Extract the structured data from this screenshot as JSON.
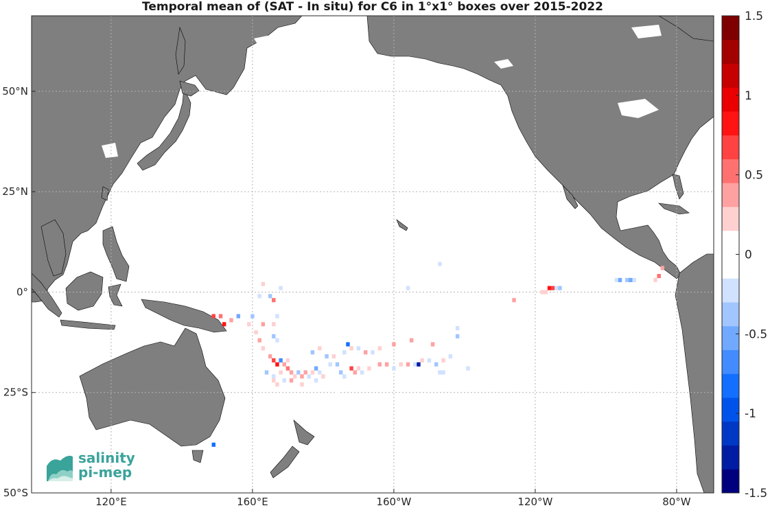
{
  "title": "Temporal mean of (SAT - In situ) for C6 in 1°x1° boxes over 2015-2022",
  "map": {
    "lon_ticks": [
      {
        "lon": 120,
        "label": "120°E"
      },
      {
        "lon": 160,
        "label": "160°E"
      },
      {
        "lon": 200,
        "label": "160°W"
      },
      {
        "lon": 240,
        "label": "120°W"
      },
      {
        "lon": 280,
        "label": "80°W"
      }
    ],
    "lat_ticks": [
      {
        "lat": 50,
        "label": "50°N"
      },
      {
        "lat": 25,
        "label": "25°N"
      },
      {
        "lat": 0,
        "label": "0°"
      },
      {
        "lat": -25,
        "label": "25°S"
      },
      {
        "lat": -50,
        "label": "50°S"
      }
    ],
    "land_color": "#7f7f7f",
    "grid": true
  },
  "colorbar": {
    "min": -1.5,
    "max": 1.5,
    "labels": [
      {
        "value": 1.5,
        "label": "1.5"
      },
      {
        "value": 1,
        "label": "1"
      },
      {
        "value": 0.5,
        "label": "0.5"
      },
      {
        "value": 0,
        "label": "0"
      },
      {
        "value": -0.5,
        "label": "-0.5"
      },
      {
        "value": -1,
        "label": "-1"
      },
      {
        "value": -1.5,
        "label": "-1.5"
      }
    ],
    "neg_color": "#00007f",
    "pos_color": "#7f0000"
  },
  "cells": [
    {
      "lon": 163,
      "lat": 2,
      "v": 0.2
    },
    {
      "lon": 166,
      "lat": 1,
      "v": -0.15
    },
    {
      "lon": 168,
      "lat": 1,
      "v": -0.2
    },
    {
      "lon": 165,
      "lat": -1,
      "v": -0.4
    },
    {
      "lon": 166,
      "lat": -2,
      "v": 0.5
    },
    {
      "lon": 162,
      "lat": -1,
      "v": -0.25
    },
    {
      "lon": 162,
      "lat": -5,
      "v": 0.15
    },
    {
      "lon": 160,
      "lat": -6,
      "v": -0.3
    },
    {
      "lon": 167,
      "lat": -6,
      "v": -0.2
    },
    {
      "lon": 149,
      "lat": -6,
      "v": 0.7
    },
    {
      "lon": 151,
      "lat": -6,
      "v": 0.5
    },
    {
      "lon": 152,
      "lat": -8,
      "v": 0.9
    },
    {
      "lon": 154,
      "lat": -7,
      "v": 0.3
    },
    {
      "lon": 156,
      "lat": -6,
      "v": -0.5
    },
    {
      "lon": 159,
      "lat": -8,
      "v": 0.2
    },
    {
      "lon": 163,
      "lat": -8,
      "v": 0.3
    },
    {
      "lon": 166,
      "lat": -8,
      "v": 0.2
    },
    {
      "lon": 166,
      "lat": -11,
      "v": -0.3
    },
    {
      "lon": 167,
      "lat": -12,
      "v": -0.2
    },
    {
      "lon": 161,
      "lat": -10,
      "v": 0.2
    },
    {
      "lon": 162,
      "lat": -12,
      "v": 0.3
    },
    {
      "lon": 163,
      "lat": -14,
      "v": 0.2
    },
    {
      "lon": 164,
      "lat": -15,
      "v": 0.15
    },
    {
      "lon": 165,
      "lat": -16,
      "v": 0.4
    },
    {
      "lon": 166,
      "lat": -17,
      "v": 0.6
    },
    {
      "lon": 167,
      "lat": -18,
      "v": 0.8
    },
    {
      "lon": 168,
      "lat": -17,
      "v": -0.7
    },
    {
      "lon": 169,
      "lat": -18,
      "v": 0.3
    },
    {
      "lon": 170,
      "lat": -17,
      "v": 0.2
    },
    {
      "lon": 168,
      "lat": -20,
      "v": 0.2
    },
    {
      "lon": 170,
      "lat": -19,
      "v": 0.5
    },
    {
      "lon": 171,
      "lat": -20,
      "v": 0.3
    },
    {
      "lon": 172,
      "lat": -21,
      "v": 0.2
    },
    {
      "lon": 173,
      "lat": -20,
      "v": -0.3
    },
    {
      "lon": 174,
      "lat": -21,
      "v": 0.4
    },
    {
      "lon": 175,
      "lat": -20,
      "v": 0.3
    },
    {
      "lon": 176,
      "lat": -21,
      "v": -0.2
    },
    {
      "lon": 177,
      "lat": -20,
      "v": 0.2
    },
    {
      "lon": 178,
      "lat": -19,
      "v": -0.5
    },
    {
      "lon": 179,
      "lat": -20,
      "v": -0.2
    },
    {
      "lon": 180,
      "lat": -21,
      "v": 0.2
    },
    {
      "lon": 164,
      "lat": -20,
      "v": -0.3
    },
    {
      "lon": 166,
      "lat": -21,
      "v": -0.2
    },
    {
      "lon": 166,
      "lat": -22,
      "v": 0.2
    },
    {
      "lon": 169,
      "lat": -22,
      "v": -0.2
    },
    {
      "lon": 171,
      "lat": -22,
      "v": 0.3
    },
    {
      "lon": 167,
      "lat": -23,
      "v": 0.2
    },
    {
      "lon": 181,
      "lat": -16,
      "v": -0.3
    },
    {
      "lon": 182,
      "lat": -18,
      "v": -0.2
    },
    {
      "lon": 183,
      "lat": -16,
      "v": 0.2
    },
    {
      "lon": 184,
      "lat": -18,
      "v": -0.3
    },
    {
      "lon": 185,
      "lat": -16,
      "v": 0.15
    },
    {
      "lon": 186,
      "lat": -15,
      "v": -0.2
    },
    {
      "lon": 187,
      "lat": -13,
      "v": -0.8
    },
    {
      "lon": 188,
      "lat": -19,
      "v": 0.6
    },
    {
      "lon": 189,
      "lat": -20,
      "v": 0.3
    },
    {
      "lon": 190,
      "lat": -19,
      "v": 0.2
    },
    {
      "lon": 191,
      "lat": -20,
      "v": -0.2
    },
    {
      "lon": 193,
      "lat": -19,
      "v": 0.2
    },
    {
      "lon": 185,
      "lat": -20,
      "v": -0.4
    },
    {
      "lon": 186,
      "lat": -21,
      "v": -0.2
    },
    {
      "lon": 188,
      "lat": -14,
      "v": 0.2
    },
    {
      "lon": 190,
      "lat": -14,
      "v": -0.2
    },
    {
      "lon": 192,
      "lat": -15,
      "v": 0.3
    },
    {
      "lon": 194,
      "lat": -15,
      "v": -0.2
    },
    {
      "lon": 196,
      "lat": -14,
      "v": 0.2
    },
    {
      "lon": 196,
      "lat": -18,
      "v": 0.3
    },
    {
      "lon": 198,
      "lat": -18,
      "v": 0.4
    },
    {
      "lon": 200,
      "lat": -13,
      "v": 0.3
    },
    {
      "lon": 200,
      "lat": -19,
      "v": -0.2
    },
    {
      "lon": 202,
      "lat": -18,
      "v": 0.2
    },
    {
      "lon": 205,
      "lat": -12,
      "v": 0.4
    },
    {
      "lon": 204,
      "lat": -18,
      "v": 0.3
    },
    {
      "lon": 206,
      "lat": -18,
      "v": -0.2
    },
    {
      "lon": 207,
      "lat": -18,
      "v": -1.3
    },
    {
      "lon": 208,
      "lat": -17,
      "v": 0.2
    },
    {
      "lon": 210,
      "lat": -17,
      "v": -0.2
    },
    {
      "lon": 211,
      "lat": -13,
      "v": 0.3
    },
    {
      "lon": 212,
      "lat": -18,
      "v": -0.3
    },
    {
      "lon": 214,
      "lat": -17,
      "v": 0.2
    },
    {
      "lon": 213,
      "lat": -20,
      "v": -0.2
    },
    {
      "lon": 216,
      "lat": -16,
      "v": -0.2
    },
    {
      "lon": 218,
      "lat": -11,
      "v": -0.3
    },
    {
      "lon": 218,
      "lat": -9,
      "v": -0.2
    },
    {
      "lon": 214,
      "lat": -20,
      "v": -0.2
    },
    {
      "lon": 221,
      "lat": -19,
      "v": -0.2
    },
    {
      "lon": 178,
      "lat": -22,
      "v": -0.2
    },
    {
      "lon": 174,
      "lat": -23,
      "v": 0.2
    },
    {
      "lon": 184,
      "lat": -25,
      "v": -0.15
    },
    {
      "lon": 213,
      "lat": 7,
      "v": -0.2
    },
    {
      "lon": 211,
      "lat": 5,
      "v": -0.15
    },
    {
      "lon": 204,
      "lat": 1,
      "v": -0.2
    },
    {
      "lon": 234,
      "lat": -2,
      "v": 0.3
    },
    {
      "lon": 242,
      "lat": 0,
      "v": 0.2
    },
    {
      "lon": 243,
      "lat": 0,
      "v": 0.25
    },
    {
      "lon": 244,
      "lat": 1,
      "v": 0.8
    },
    {
      "lon": 245,
      "lat": 1,
      "v": 0.6
    },
    {
      "lon": 246,
      "lat": 1,
      "v": -0.2
    },
    {
      "lon": 247,
      "lat": 1,
      "v": -0.3
    },
    {
      "lon": 263,
      "lat": 3,
      "v": -0.2
    },
    {
      "lon": 264,
      "lat": 3,
      "v": -0.6
    },
    {
      "lon": 266,
      "lat": 3,
      "v": -0.3
    },
    {
      "lon": 267,
      "lat": 3,
      "v": -0.6
    },
    {
      "lon": 268,
      "lat": 3,
      "v": -0.2
    },
    {
      "lon": 270,
      "lat": 4,
      "v": -0.15
    },
    {
      "lon": 274,
      "lat": 3,
      "v": 0.2
    },
    {
      "lon": 275,
      "lat": 4,
      "v": 0.5
    },
    {
      "lon": 276,
      "lat": 6,
      "v": 0.3
    },
    {
      "lon": 149,
      "lat": -38,
      "v": -0.8
    },
    {
      "lon": 177,
      "lat": -15,
      "v": -0.4
    },
    {
      "lon": 179,
      "lat": -14,
      "v": 0.2
    }
  ]
}
